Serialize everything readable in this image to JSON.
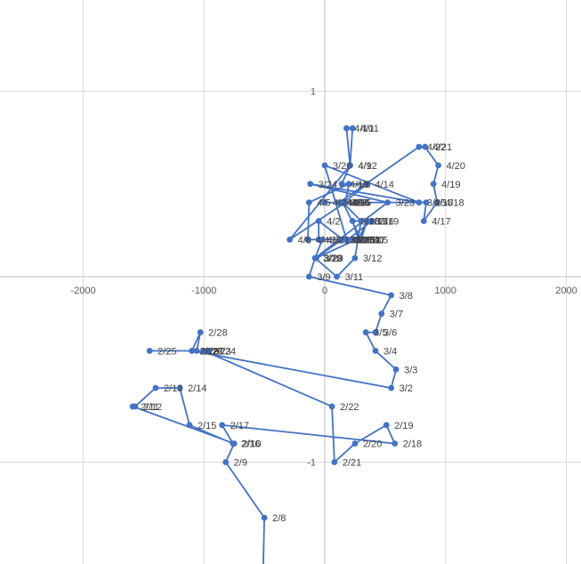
{
  "chart_data": {
    "type": "scatter",
    "title": "",
    "xlabel": "",
    "ylabel": "",
    "xlim": [
      -2000,
      2000
    ],
    "ylim": [
      -1.55,
      1.5
    ],
    "x_ticks": [
      -2000,
      -1000,
      0,
      1000,
      2000
    ],
    "y_ticks": [
      1,
      -1
    ],
    "grid": true,
    "legend": "none",
    "line_color": "#4472C4",
    "marker_color": "#4472C4",
    "series": [
      {
        "points": [
          {
            "label": "",
            "x": -510,
            "y": -1.58
          },
          {
            "label": "2/8",
            "x": -500,
            "y": -1.3
          },
          {
            "label": "2/9",
            "x": -820,
            "y": -1.0
          },
          {
            "label": "2/10",
            "x": -750,
            "y": -0.9
          },
          {
            "label": "2/11",
            "x": -1590,
            "y": -0.7
          },
          {
            "label": "2/12",
            "x": -1570,
            "y": -0.7
          },
          {
            "label": "2/13",
            "x": -1400,
            "y": -0.6
          },
          {
            "label": "2/14",
            "x": -1200,
            "y": -0.6
          },
          {
            "label": "2/15",
            "x": -1120,
            "y": -0.8
          },
          {
            "label": "2/16",
            "x": -760,
            "y": -0.9
          },
          {
            "label": "2/17",
            "x": -850,
            "y": -0.8
          },
          {
            "label": "2/18",
            "x": 580,
            "y": -0.9
          },
          {
            "label": "2/19",
            "x": 510,
            "y": -0.8
          },
          {
            "label": "2/20",
            "x": 250,
            "y": -0.9
          },
          {
            "label": "2/21",
            "x": 80,
            "y": -1.0
          },
          {
            "label": "2/22",
            "x": 60,
            "y": -0.7
          },
          {
            "label": "2/23",
            "x": -1000,
            "y": -0.4
          },
          {
            "label": "2/24",
            "x": -960,
            "y": -0.4
          },
          {
            "label": "2/25",
            "x": -1450,
            "y": -0.4
          },
          {
            "label": "2/26",
            "x": -1100,
            "y": -0.4
          },
          {
            "label": "2/27",
            "x": -1060,
            "y": -0.4
          },
          {
            "label": "2/28",
            "x": -1030,
            "y": -0.3
          },
          {
            "label": "2/29",
            "x": -1100,
            "y": -0.4
          },
          {
            "label": "3/2",
            "x": 550,
            "y": -0.6
          },
          {
            "label": "3/3",
            "x": 590,
            "y": -0.5
          },
          {
            "label": "3/4",
            "x": 420,
            "y": -0.4
          },
          {
            "label": "3/5",
            "x": 340,
            "y": -0.3
          },
          {
            "label": "3/6",
            "x": 420,
            "y": -0.3
          },
          {
            "label": "3/7",
            "x": 470,
            "y": -0.2
          },
          {
            "label": "3/8",
            "x": 550,
            "y": -0.1
          },
          {
            "label": "3/9",
            "x": -130,
            "y": 0.0
          },
          {
            "label": "3/10",
            "x": -80,
            "y": 0.1
          },
          {
            "label": "3/11",
            "x": 100,
            "y": 0.0
          },
          {
            "label": "3/12",
            "x": 250,
            "y": 0.1
          },
          {
            "label": "3/13",
            "x": 300,
            "y": 0.3
          },
          {
            "label": "3/14",
            "x": 150,
            "y": 0.4
          },
          {
            "label": "3/15",
            "x": 300,
            "y": 0.2
          },
          {
            "label": "3/16",
            "x": 350,
            "y": 0.3
          },
          {
            "label": "3/17",
            "x": 280,
            "y": 0.2
          },
          {
            "label": "3/18",
            "x": 230,
            "y": 0.3
          },
          {
            "label": "3/19",
            "x": 390,
            "y": 0.3
          },
          {
            "label": "3/20",
            "x": 190,
            "y": 0.2
          },
          {
            "label": "3/21",
            "x": -20,
            "y": 0.2
          },
          {
            "label": "3/22",
            "x": -80,
            "y": 0.1
          },
          {
            "label": "3/23",
            "x": 520,
            "y": 0.4
          },
          {
            "label": "3/24",
            "x": -120,
            "y": 0.5
          },
          {
            "label": "3/25",
            "x": 780,
            "y": 0.4
          },
          {
            "label": "3/26",
            "x": 0,
            "y": 0.6
          },
          {
            "label": "3/27",
            "x": 180,
            "y": 0.2
          },
          {
            "label": "3/28",
            "x": 140,
            "y": 0.2
          },
          {
            "label": "3/29",
            "x": -70,
            "y": 0.1
          },
          {
            "label": "3/30",
            "x": 260,
            "y": 0.2
          },
          {
            "label": "3/31",
            "x": 240,
            "y": 0.2
          },
          {
            "label": "4/1",
            "x": 150,
            "y": 0.2
          },
          {
            "label": "4/2",
            "x": -50,
            "y": 0.3
          },
          {
            "label": "4/3",
            "x": -50,
            "y": 0.2
          },
          {
            "label": "4/4",
            "x": -140,
            "y": 0.2
          },
          {
            "label": "4/5",
            "x": -130,
            "y": 0.4
          },
          {
            "label": "4/6",
            "x": 200,
            "y": 0.5
          },
          {
            "label": "4/7",
            "x": 170,
            "y": 0.4
          },
          {
            "label": "4/8",
            "x": -290,
            "y": 0.2
          },
          {
            "label": "4/9",
            "x": 210,
            "y": 0.6
          },
          {
            "label": "4/10",
            "x": 180,
            "y": 0.8
          },
          {
            "label": "4/11",
            "x": 230,
            "y": 0.8
          },
          {
            "label": "4/12",
            "x": 210,
            "y": 0.6
          },
          {
            "label": "4/13",
            "x": 140,
            "y": 0.5
          },
          {
            "label": "4/14",
            "x": 350,
            "y": 0.5
          },
          {
            "label": "4/15",
            "x": 160,
            "y": 0.4
          },
          {
            "label": "4/16",
            "x": 840,
            "y": 0.4
          },
          {
            "label": "4/17",
            "x": 820,
            "y": 0.3
          },
          {
            "label": "4/18",
            "x": 930,
            "y": 0.4
          },
          {
            "label": "4/19",
            "x": 900,
            "y": 0.5
          },
          {
            "label": "4/20",
            "x": 940,
            "y": 0.6
          },
          {
            "label": "4/21",
            "x": 830,
            "y": 0.7
          },
          {
            "label": "4/22",
            "x": 780,
            "y": 0.7
          },
          {
            "label": "4/23",
            "x": 120,
            "y": 0.4
          },
          {
            "label": "4/24",
            "x": 0,
            "y": 0.4
          },
          {
            "label": "4/25",
            "x": 150,
            "y": 0.4
          }
        ]
      }
    ]
  }
}
